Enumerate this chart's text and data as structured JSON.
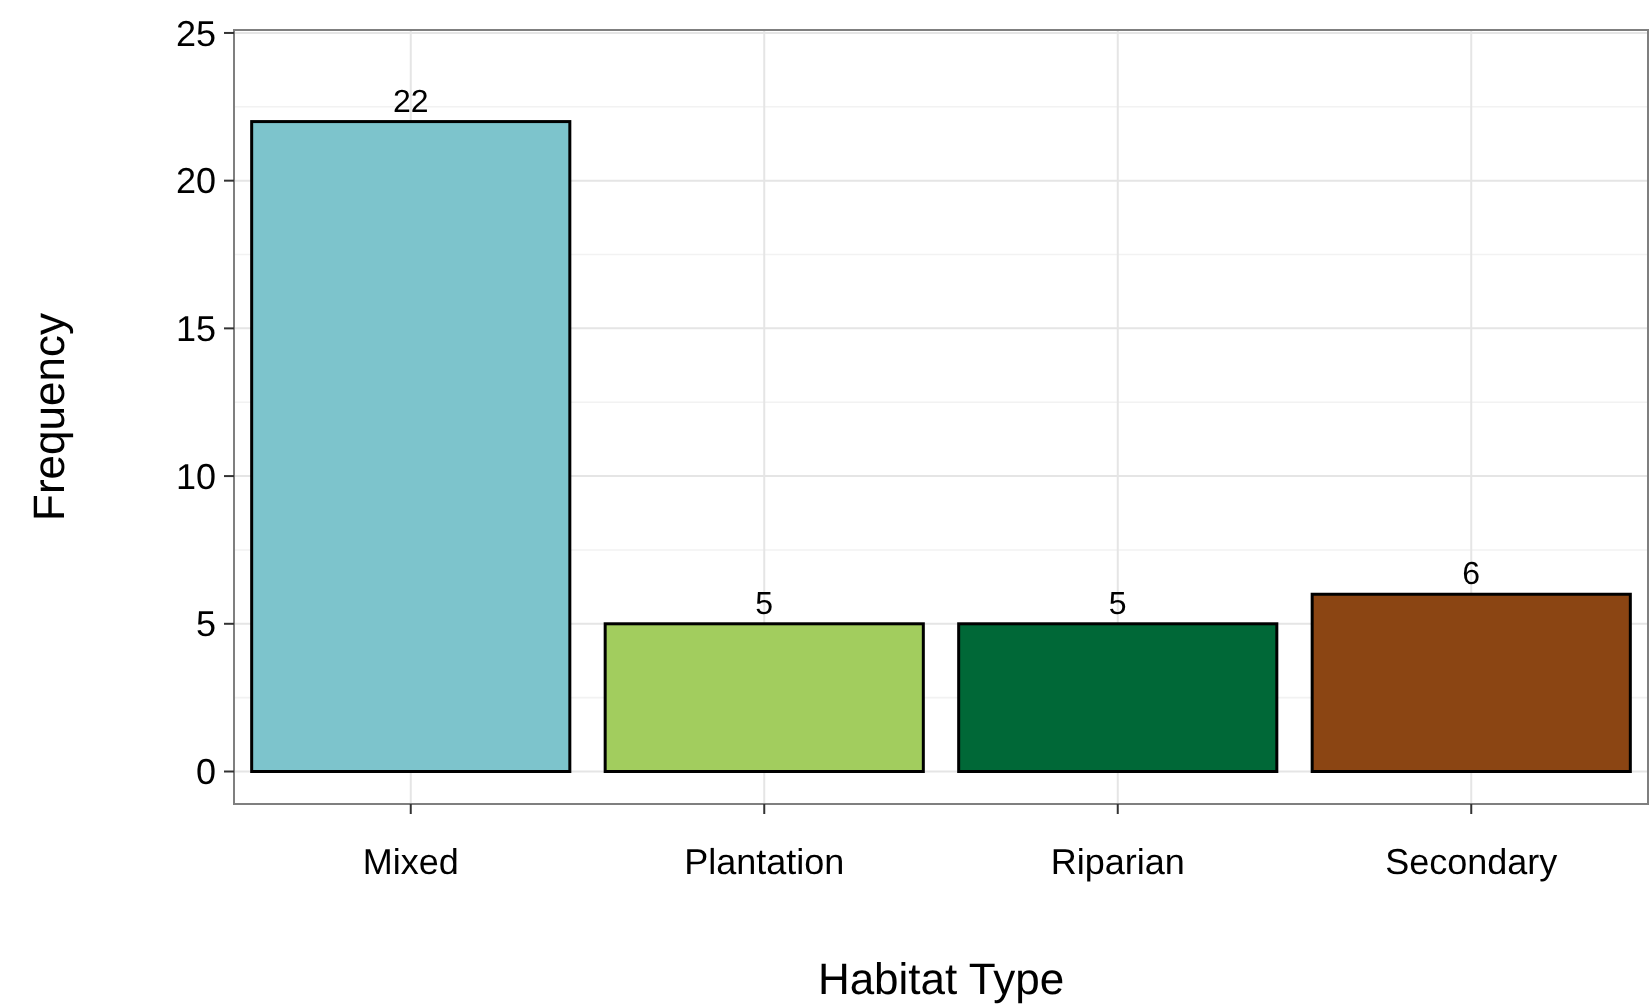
{
  "chart_data": {
    "type": "bar",
    "xlabel": "Habitat Type",
    "ylabel": "Frequency",
    "categories": [
      "Mixed",
      "Plantation",
      "Riparian",
      "Secondary"
    ],
    "values": [
      22,
      5,
      5,
      6
    ],
    "colors": [
      "#7dc4cc",
      "#a2cd5e",
      "#006837",
      "#8b4513"
    ],
    "ylim": [
      -1.1,
      25.1
    ],
    "yticks": [
      0,
      5,
      10,
      15,
      20,
      25
    ],
    "grid": true,
    "data_labels": true
  }
}
